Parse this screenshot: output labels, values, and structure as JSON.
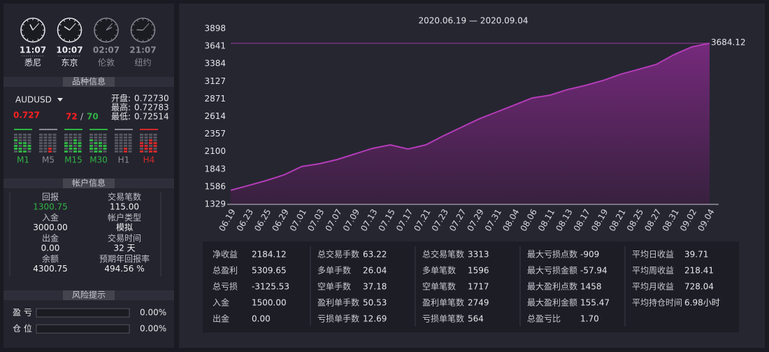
{
  "clocks": [
    {
      "time": "11:07",
      "city": "悉尼",
      "active": true
    },
    {
      "time": "10:07",
      "city": "东京",
      "active": true
    },
    {
      "time": "02:07",
      "city": "伦敦",
      "active": false
    },
    {
      "time": "21:07",
      "city": "纽约",
      "active": false
    }
  ],
  "symbol_section": {
    "title": "品种信息",
    "symbol": "AUDUSD",
    "price_main": "0.727",
    "price_bid": "72",
    "price_sep": "/",
    "price_ask": "70",
    "quotes": [
      {
        "label": "开盘:",
        "value": "0.72730"
      },
      {
        "label": "最高:",
        "value": "0.72783"
      },
      {
        "label": "最低:",
        "value": "0.72514"
      }
    ],
    "timeframes": [
      {
        "name": "M1",
        "color": "#2fb344"
      },
      {
        "name": "M5",
        "color": "#8a8a92"
      },
      {
        "name": "M15",
        "color": "#2fb344"
      },
      {
        "name": "M30",
        "color": "#2fb344"
      },
      {
        "name": "H1",
        "color": "#8a8a92"
      },
      {
        "name": "H4",
        "color": "#d42a2a"
      }
    ]
  },
  "account_section": {
    "title": "帐户信息",
    "items": [
      {
        "label": "回报",
        "value": "1300.75"
      },
      {
        "label": "交易笔数",
        "value": "115.00"
      },
      {
        "label": "入金",
        "value": "3000.00"
      },
      {
        "label": "帐户类型",
        "value": "模拟"
      },
      {
        "label": "出金",
        "value": "0.00"
      },
      {
        "label": "交易时间",
        "value": "32 天"
      },
      {
        "label": "余额",
        "value": "4300.75"
      },
      {
        "label": "预期年回报率",
        "value": "494.56 %"
      }
    ]
  },
  "risk_section": {
    "title": "风险提示",
    "items": [
      {
        "label": "盈 亏",
        "value": "0.00%"
      },
      {
        "label": "仓 位",
        "value": "0.00%"
      }
    ]
  },
  "chart_data": {
    "type": "area",
    "title": "2020.06.19 — 2020.09.04",
    "categories": [
      "06.19",
      "06.23",
      "06.25",
      "06.29",
      "07.01",
      "07.03",
      "07.07",
      "07.09",
      "07.13",
      "07.15",
      "07.17",
      "07.21",
      "07.23",
      "07.27",
      "07.29",
      "07.31",
      "08.04",
      "08.06",
      "08.11",
      "08.13",
      "08.17",
      "08.19",
      "08.21",
      "08.25",
      "08.27",
      "08.31",
      "09.02",
      "09.04"
    ],
    "values": [
      1534,
      1605,
      1677,
      1759,
      1882,
      1923,
      1984,
      2066,
      2148,
      2199,
      2138,
      2199,
      2332,
      2455,
      2578,
      2680,
      2782,
      2885,
      2926,
      3008,
      3069,
      3141,
      3233,
      3304,
      3376,
      3519,
      3632,
      3684.12
    ],
    "color": "#b43cb8",
    "ylim": [
      1329,
      3898
    ],
    "yticks": [
      1329,
      1586,
      1843,
      2100,
      2357,
      2614,
      2871,
      3127,
      3384,
      3641,
      3898
    ]
  },
  "stats": {
    "rows": [
      [
        {
          "label": "净收益",
          "value": "2184.12"
        },
        {
          "label": "总交易手数",
          "value": "63.22"
        },
        {
          "label": "总交易笔数",
          "value": "3313"
        },
        {
          "label": "最大亏损点数",
          "value": "-909"
        },
        {
          "label": "平均日收益",
          "value": "39.71"
        }
      ],
      [
        {
          "label": "总盈利",
          "value": "5309.65"
        },
        {
          "label": "多单手数",
          "value": "26.04"
        },
        {
          "label": "多单笔数",
          "value": "1596"
        },
        {
          "label": "最大亏损金额",
          "value": "-57.94"
        },
        {
          "label": "平均周收益",
          "value": "218.41"
        }
      ],
      [
        {
          "label": "总亏损",
          "value": "-3125.53"
        },
        {
          "label": "空单手数",
          "value": "37.18"
        },
        {
          "label": "空单笔数",
          "value": "1717"
        },
        {
          "label": "最大盈利点数",
          "value": "1458"
        },
        {
          "label": "平均月收益",
          "value": "728.04"
        }
      ],
      [
        {
          "label": "入金",
          "value": "1500.00"
        },
        {
          "label": "盈利单手数",
          "value": "50.53"
        },
        {
          "label": "盈利单笔数",
          "value": "2749"
        },
        {
          "label": "最大盈利金额",
          "value": "155.47"
        },
        {
          "label": "平均持仓时间",
          "value": "6.98小时"
        }
      ],
      [
        {
          "label": "出金",
          "value": "0.00"
        },
        {
          "label": "亏损单手数",
          "value": "12.69"
        },
        {
          "label": "亏损单笔数",
          "value": "564"
        },
        {
          "label": "总盈亏比",
          "value": "1.70"
        }
      ]
    ]
  }
}
